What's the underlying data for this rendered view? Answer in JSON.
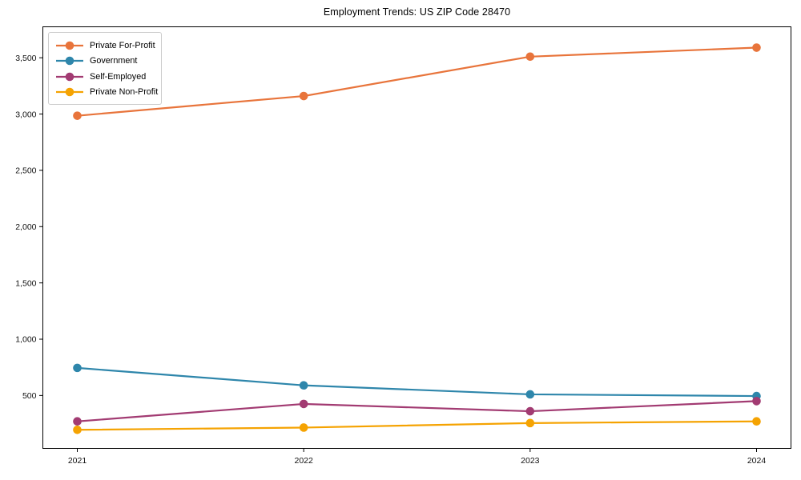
{
  "chart_data": {
    "type": "line",
    "title": "Employment Trends: US ZIP Code 28470",
    "xlabel": "",
    "ylabel": "",
    "categories": [
      "2021",
      "2022",
      "2023",
      "2024"
    ],
    "series": [
      {
        "name": "Private For-Profit",
        "color": "#e8743b",
        "values": [
          2985,
          3160,
          3510,
          3590
        ]
      },
      {
        "name": "Government",
        "color": "#2e86ab",
        "values": [
          745,
          590,
          510,
          495
        ]
      },
      {
        "name": "Self-Employed",
        "color": "#a23b72",
        "values": [
          270,
          425,
          360,
          450
        ]
      },
      {
        "name": "Private Non-Profit",
        "color": "#f5a302",
        "values": [
          195,
          215,
          255,
          270
        ]
      }
    ],
    "yticks": [
      500,
      1000,
      1500,
      2000,
      2500,
      3000,
      3500
    ],
    "ytick_labels": [
      "500",
      "1,000",
      "1,500",
      "2,000",
      "2,500",
      "3,000",
      "3,500"
    ],
    "ylim": [
      30,
      3775
    ],
    "grid": false,
    "legend_position": "upper left",
    "marker": "circle"
  }
}
